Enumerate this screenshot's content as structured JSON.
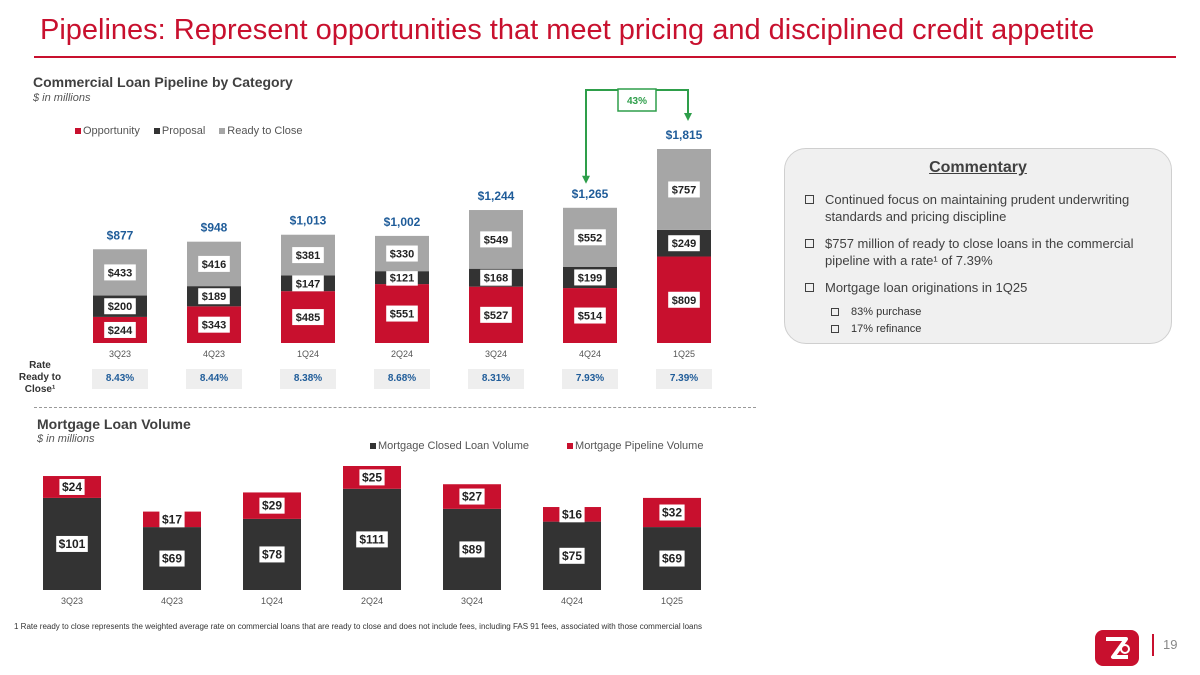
{
  "title": "Pipelines: Represent opportunities that meet pricing and disciplined credit appetite",
  "colors": {
    "red": "#c8102e",
    "dark": "#333333",
    "gray": "#a6a6a6",
    "blue": "#1f5c99",
    "green": "#2e9e4a"
  },
  "commercial": {
    "title": "Commercial Loan Pipeline by Category",
    "subtitle": "$ in millions",
    "growth_label": "43%",
    "rate_label": "Rate Ready to Close¹",
    "rates": [
      "8.43%",
      "8.44%",
      "8.38%",
      "8.68%",
      "8.31%",
      "7.93%",
      "7.39%"
    ]
  },
  "mortgage": {
    "title": "Mortgage Loan Volume",
    "subtitle": "$ in millions"
  },
  "commentary": {
    "title": "Commentary",
    "bullets": [
      "Continued focus on maintaining prudent underwriting standards and pricing discipline",
      "$757 million of ready to close loans in the commercial pipeline with a rate¹ of 7.39%",
      "Mortgage loan originations in 1Q25"
    ],
    "sub_bullets": [
      "83% purchase",
      "17% refinance"
    ]
  },
  "footnote": "1 Rate ready to close represents the weighted average rate on commercial loans that are ready to close and does not include fees, including FAS 91 fees, associated with those commercial loans",
  "page_number": "19",
  "logo_icon": "zions-logo-icon",
  "chart_data": [
    {
      "type": "bar",
      "stacked": true,
      "title": "Commercial Loan Pipeline by Category",
      "categories": [
        "3Q23",
        "4Q23",
        "1Q24",
        "2Q24",
        "3Q24",
        "4Q24",
        "1Q25"
      ],
      "series": [
        {
          "name": "Opportunity",
          "color": "#c8102e",
          "values": [
            244,
            343,
            485,
            551,
            527,
            514,
            809
          ],
          "labels": [
            "$244",
            "$343",
            "$485",
            "$551",
            "$527",
            "$514",
            "$809"
          ]
        },
        {
          "name": "Proposal",
          "color": "#333333",
          "values": [
            200,
            189,
            147,
            121,
            168,
            199,
            249
          ],
          "labels": [
            "$200",
            "$189",
            "$147",
            "$121",
            "$168",
            "$199",
            "$249"
          ]
        },
        {
          "name": "Ready to Close",
          "color": "#a6a6a6",
          "values": [
            433,
            416,
            381,
            330,
            549,
            552,
            757
          ],
          "labels": [
            "$433",
            "$416",
            "$381",
            "$330",
            "$549",
            "$552",
            "$757"
          ]
        }
      ],
      "totals": [
        "$877",
        "$948",
        "$1,013",
        "$1,002",
        "$1,244",
        "$1,265",
        "$1,815"
      ],
      "legend": "top-left"
    },
    {
      "type": "bar",
      "stacked": true,
      "title": "Mortgage Loan Volume",
      "categories": [
        "3Q23",
        "4Q23",
        "1Q24",
        "2Q24",
        "3Q24",
        "4Q24",
        "1Q25"
      ],
      "series": [
        {
          "name": "Mortgage Closed Loan Volume",
          "color": "#333333",
          "values": [
            101,
            69,
            78,
            111,
            89,
            75,
            69
          ],
          "labels": [
            "$101",
            "$69",
            "$78",
            "$111",
            "$89",
            "$75",
            "$69"
          ]
        },
        {
          "name": "Mortgage Pipeline Volume",
          "color": "#c8102e",
          "values": [
            24,
            17,
            29,
            25,
            27,
            16,
            32
          ],
          "labels": [
            "$24",
            "$17",
            "$29",
            "$25",
            "$27",
            "$16",
            "$32"
          ]
        }
      ],
      "legend": "top-center"
    }
  ]
}
